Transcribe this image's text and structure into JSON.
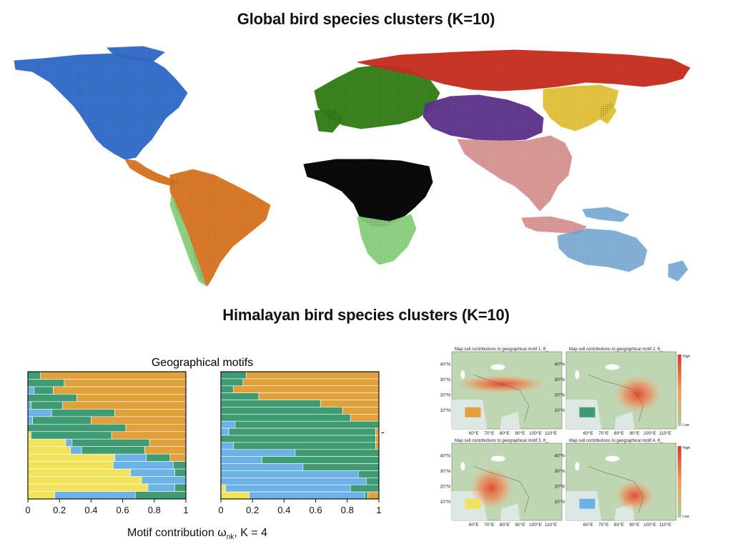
{
  "titles": {
    "global": "Global bird species clusters (K=10)",
    "himalayan": "Himalayan bird species clusters (K=10)"
  },
  "colors": {
    "orange_motif": "#E0A03A",
    "green_motif": "#3E9B73",
    "blue_motif": "#6DB2E6",
    "yellow_motif": "#F2E35A",
    "cluster_blue": "#3B78D8",
    "cluster_orange": "#E8822C",
    "cluster_lightgreen": "#98E08C",
    "cluster_black": "#0A0A0A",
    "cluster_darkgreen": "#3E8C22",
    "cluster_red": "#D63A2A",
    "cluster_yellow": "#F2D146",
    "cluster_purple": "#6A3F9A",
    "cluster_pink": "#E8A3A0",
    "cluster_lightblue": "#8CBCE6"
  },
  "motif_chart": {
    "title": "Geographical motifs",
    "xlabel_main": "Motif contribution ω",
    "xlabel_sub": "nk",
    "xlabel_tail": ",  K = 4",
    "tick_labels": [
      "0",
      "0.2",
      "0.4",
      "0.6",
      "0.8",
      "1"
    ],
    "side_mark": "-"
  },
  "chart_data": [
    {
      "type": "bar",
      "orientation": "horizontal-stacked",
      "xlim": [
        0,
        1
      ],
      "ticks": [
        0,
        0.2,
        0.4,
        0.6,
        0.8,
        1
      ],
      "series_order": [
        "yellow",
        "blue",
        "green",
        "orange"
      ],
      "rows": [
        [
          0,
          0,
          0.08,
          0.92
        ],
        [
          0,
          0,
          0.23,
          0.77
        ],
        [
          0,
          0.04,
          0.12,
          0.84
        ],
        [
          0,
          0,
          0.31,
          0.69
        ],
        [
          0,
          0.02,
          0.2,
          0.78
        ],
        [
          0,
          0.15,
          0.4,
          0.45
        ],
        [
          0,
          0.03,
          0.37,
          0.6
        ],
        [
          0,
          0,
          0.62,
          0.38
        ],
        [
          0.02,
          0,
          0.51,
          0.47
        ],
        [
          0.24,
          0.04,
          0.49,
          0.23
        ],
        [
          0.27,
          0.07,
          0.4,
          0.26
        ],
        [
          0.55,
          0.2,
          0.15,
          0.1
        ],
        [
          0.54,
          0.38,
          0.08,
          0
        ],
        [
          0.65,
          0.28,
          0.07,
          0
        ],
        [
          0.72,
          0.28,
          0,
          0
        ],
        [
          0.76,
          0.17,
          0.07,
          0
        ],
        [
          0.17,
          0.51,
          0.32,
          0
        ]
      ]
    },
    {
      "type": "bar",
      "orientation": "horizontal-stacked",
      "xlim": [
        0,
        1
      ],
      "ticks": [
        0,
        0.2,
        0.4,
        0.6,
        0.8,
        1
      ],
      "series_order": [
        "yellow",
        "blue",
        "green",
        "orange"
      ],
      "rows": [
        [
          0,
          0,
          0.16,
          0.84
        ],
        [
          0,
          0,
          0.14,
          0.86
        ],
        [
          0,
          0,
          0.08,
          0.92
        ],
        [
          0,
          0,
          0.24,
          0.76
        ],
        [
          0,
          0,
          0.63,
          0.37
        ],
        [
          0,
          0,
          0.77,
          0.23
        ],
        [
          0,
          0,
          0.82,
          0.18
        ],
        [
          0,
          0.09,
          0.91,
          0
        ],
        [
          0,
          0.05,
          0.93,
          0.02
        ],
        [
          0,
          0,
          0.98,
          0.02
        ],
        [
          0,
          0.08,
          0.9,
          0.02
        ],
        [
          0,
          0.47,
          0.53,
          0
        ],
        [
          0,
          0.26,
          0.74,
          0
        ],
        [
          0,
          0.52,
          0.48,
          0
        ],
        [
          0,
          0.87,
          0.13,
          0
        ],
        [
          0,
          0.92,
          0.08,
          0
        ],
        [
          0.03,
          0.79,
          0.18,
          0
        ],
        [
          0.18,
          0.73,
          0.02,
          0.07
        ]
      ]
    }
  ],
  "motif_maps": [
    {
      "title": "Map cell contributions to geographical motif 1, θ",
      "sub": "k1",
      "swatch": "#E0A03A",
      "focus": "himalaya"
    },
    {
      "title": "Map cell contributions to geographical motif 2, θ",
      "sub": "k2",
      "swatch": "#3E9B73",
      "focus": "east"
    },
    {
      "title": "Map cell contributions to geographical motif 3, θ",
      "sub": "k3",
      "swatch": "#F2E35A",
      "focus": "india"
    },
    {
      "title": "Map cell contributions to geographical motif 4, θ",
      "sub": "k4",
      "swatch": "#6DB2E6",
      "focus": "southeast"
    }
  ],
  "map_axes": {
    "lat_labels": [
      "40°N",
      "30°N",
      "20°N",
      "10°N"
    ],
    "lon_labels": [
      "60°E",
      "70°E",
      "80°E",
      "90°E",
      "100°E",
      "110°E"
    ],
    "colorbar_high": "High",
    "colorbar_low": "Low"
  }
}
